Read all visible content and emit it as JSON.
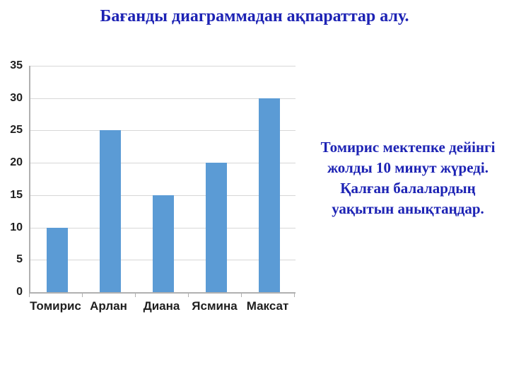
{
  "slide": {
    "title": "Бағанды диаграммадан ақпараттар алу.",
    "side_text": "Томирис мектепке дейінгі жолды 10 минут жүреді. Қалған балалардың уақытын анықтаңдар."
  },
  "colors": {
    "title": "#1d23b4",
    "side_text": "#1d23b4",
    "bar": "#5b9bd5",
    "grid": "#d7d7d7",
    "axis": "#b0b0b0",
    "tick_label": "#1f1f1f",
    "background": "#ffffff"
  },
  "chart_data": {
    "type": "bar",
    "categories": [
      "Томирис",
      "Арлан",
      "Диана",
      "Ясмина",
      "Максат"
    ],
    "values": [
      10,
      25,
      15,
      20,
      30
    ],
    "title": "",
    "xlabel": "",
    "ylabel": "",
    "ylim": [
      0,
      35
    ],
    "yticks": [
      0,
      5,
      10,
      15,
      20,
      25,
      30,
      35
    ],
    "grid": true,
    "legend": false,
    "bar_color": "#5b9bd5"
  }
}
